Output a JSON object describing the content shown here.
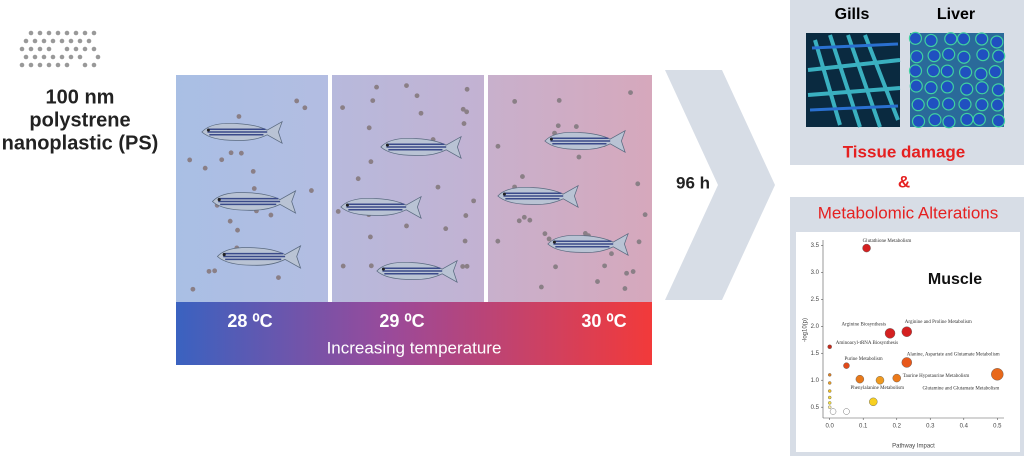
{
  "source": {
    "lines": [
      "100 nm",
      "polystrene",
      "nanoplastic (PS)"
    ]
  },
  "tanks": [
    {
      "label": "28 ⁰C"
    },
    {
      "label": "29 ⁰C"
    },
    {
      "label": "30 ⁰C"
    }
  ],
  "gradient_label": "Increasing temperature",
  "arrow_label": "96 h",
  "tissue": {
    "images": [
      "Gills",
      "Liver"
    ],
    "result": [
      "Tissue damage",
      "&",
      "Metabolomic Alterations"
    ]
  },
  "muscle_plot": {
    "type": "scatter",
    "title": "Muscle",
    "x_label": "Pathway Impact",
    "y_label": "-log10(p)",
    "xlim": [
      -0.02,
      0.52
    ],
    "ylim": [
      0.3,
      3.6
    ],
    "xticks": [
      {
        "value": 0,
        "label": "0.0"
      },
      0.1,
      0.2,
      0.3,
      0.4,
      0.5
    ],
    "yticks": [
      0.5,
      {
        "value": 1,
        "label": "1.0"
      },
      1.5,
      {
        "value": 2,
        "label": "2.0"
      },
      2.5,
      {
        "value": 3,
        "label": "3.0"
      },
      3.5
    ],
    "points": [
      {
        "x": 0.11,
        "y": 3.45,
        "size": 4,
        "color": "#d42020",
        "label": "Glutathione Metabolism"
      },
      {
        "x": 0.18,
        "y": 1.87,
        "size": 5,
        "color": "#d42020",
        "label": "Arginine Biosynthesis"
      },
      {
        "x": 0.23,
        "y": 1.9,
        "size": 5,
        "color": "#d42020",
        "label": "Arginine and Proline Metabolism"
      },
      {
        "x": 0,
        "y": 1.62,
        "size": 2,
        "color": "#c82a1a",
        "label": "Aminoacyl-tRNA Biosynthesis"
      },
      {
        "x": 0.05,
        "y": 1.27,
        "size": 3,
        "color": "#e04a1a",
        "label": "Purine Metabolism"
      },
      {
        "x": 0.23,
        "y": 1.33,
        "size": 5,
        "color": "#e8581a",
        "label": "Alanine, Aspartate and Glutamate Metabolism"
      },
      {
        "x": 0.09,
        "y": 1.02,
        "size": 4,
        "color": "#e8781a"
      },
      {
        "x": 0.15,
        "y": 1.0,
        "size": 4,
        "color": "#f09a20"
      },
      {
        "x": 0.2,
        "y": 1.04,
        "size": 4,
        "color": "#ec7a1a",
        "label": "Taurine Hypotaurine Metabolism"
      },
      {
        "x": 0.5,
        "y": 1.11,
        "size": 6,
        "color": "#e8681a",
        "label": "Glutamine and Glutamate Metabolism"
      },
      {
        "x": 0.13,
        "y": 0.6,
        "size": 4,
        "color": "#f8d020",
        "label": "Phenylalanine Metabolism"
      },
      {
        "x": 0.05,
        "y": 0.42,
        "size": 3,
        "color": "#ffffff"
      },
      {
        "x": 0.01,
        "y": 0.42,
        "size": 3,
        "color": "#ffffff"
      },
      {
        "x": 0,
        "y": 1.1,
        "size": 1.5,
        "color": "#e08020"
      },
      {
        "x": 0,
        "y": 0.95,
        "size": 1.5,
        "color": "#f0a020"
      },
      {
        "x": 0,
        "y": 0.8,
        "size": 1.5,
        "color": "#f4c020"
      },
      {
        "x": 0,
        "y": 0.68,
        "size": 1.5,
        "color": "#f8d830"
      },
      {
        "x": 0,
        "y": 0.58,
        "size": 1.5,
        "color": "#f8e040"
      },
      {
        "x": 0,
        "y": 0.5,
        "size": 1.5,
        "color": "#fff0a0"
      }
    ]
  }
}
